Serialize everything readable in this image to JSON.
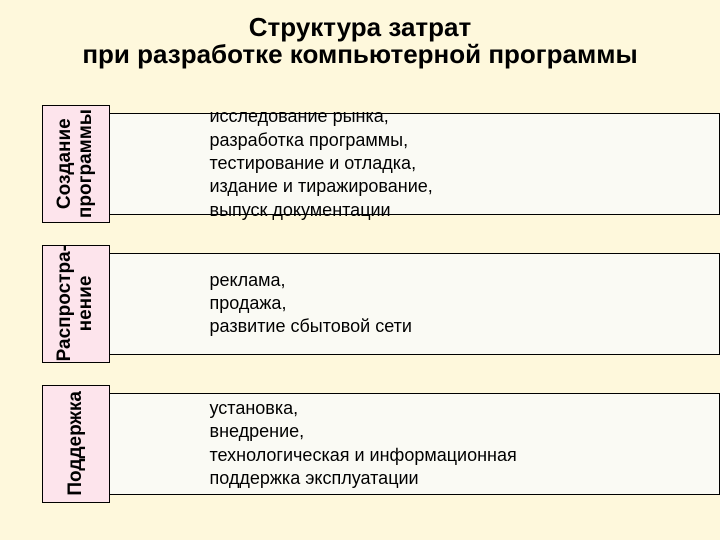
{
  "title": {
    "line1": "Структура затрат",
    "line2": "при разработке компьютерной программы",
    "fontsize": 26
  },
  "background_color": "#fef8dc",
  "tab_bg_color": "#fde4ec",
  "panel_bg_color": "#fafaf4",
  "border_color": "#000000",
  "tab_fontsize": 19,
  "panel_fontsize": 18,
  "rows": [
    {
      "tab_label": "Создание\nпрограммы",
      "panel_text": "исследование рынка,\nразработка программы,\nтестирование и отладка,\nиздание и тиражирование,\nвыпуск документации"
    },
    {
      "tab_label": "Распростра-\nнение",
      "panel_text": "реклама,\nпродажа,\nразвитие сбытовой сети"
    },
    {
      "tab_label": "Поддержка",
      "panel_text": "установка,\nвнедрение,\nтехнологическая и информационная\nподдержка эксплуатации"
    }
  ]
}
